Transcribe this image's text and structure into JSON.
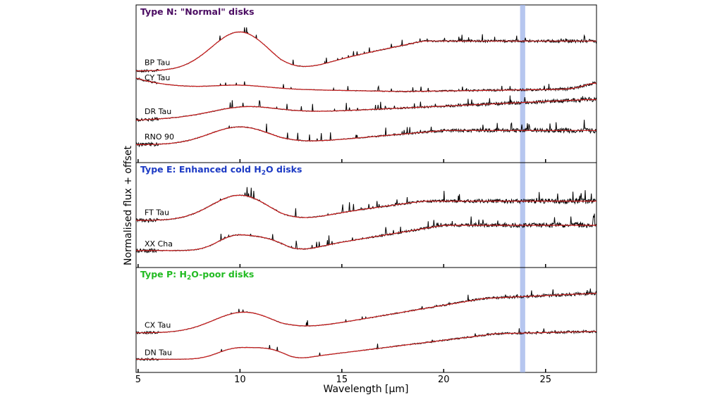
{
  "chart_data": {
    "type": "line",
    "xlabel": "Wavelength [μm]",
    "ylabel": "Normalised flux + offset",
    "xlim": [
      4.9,
      27.5
    ],
    "x_ticks": [
      "5",
      "10",
      "15",
      "20",
      "25"
    ],
    "highlight_band": {
      "x": [
        23.75,
        24.0
      ],
      "color": "#9db3ea"
    },
    "colors": {
      "data": "#000000",
      "model": "#cc1f1f"
    },
    "panels": [
      {
        "title_parts": [
          "Type N: \"Normal\" disks"
        ],
        "title_color": "#4b0c62",
        "series": [
          {
            "name": "BP Tau",
            "shape": "silicate",
            "level": 0.7,
            "noise": 0.6
          },
          {
            "name": "CY Tau",
            "shape": "flat_down",
            "level": 0.55,
            "noise": 0.5
          },
          {
            "name": "DR Tau",
            "shape": "rising",
            "level": 0.3,
            "noise": 0.8
          },
          {
            "name": "RNO 90",
            "shape": "silicate_weak",
            "level": 0.1,
            "noise": 0.9
          }
        ]
      },
      {
        "title_parts": [
          "Type E: Enhanced cold H",
          "2",
          "O disks"
        ],
        "title_color": "#1c3ac4",
        "series": [
          {
            "name": "FT Tau",
            "shape": "silicate",
            "level": 0.55,
            "noise": 1.0
          },
          {
            "name": "XX Cha",
            "shape": "silicate_double",
            "level": 0.15,
            "noise": 1.0
          }
        ]
      },
      {
        "title_parts": [
          "Type P: H",
          "2",
          "O-poor disks"
        ],
        "title_color": "#22bb22",
        "series": [
          {
            "name": "CX Tau",
            "shape": "silicate_rise",
            "level": 0.45,
            "noise": 0.6
          },
          {
            "name": "DN Tau",
            "shape": "silicate_double_low",
            "level": 0.1,
            "noise": 0.5
          }
        ]
      }
    ]
  }
}
